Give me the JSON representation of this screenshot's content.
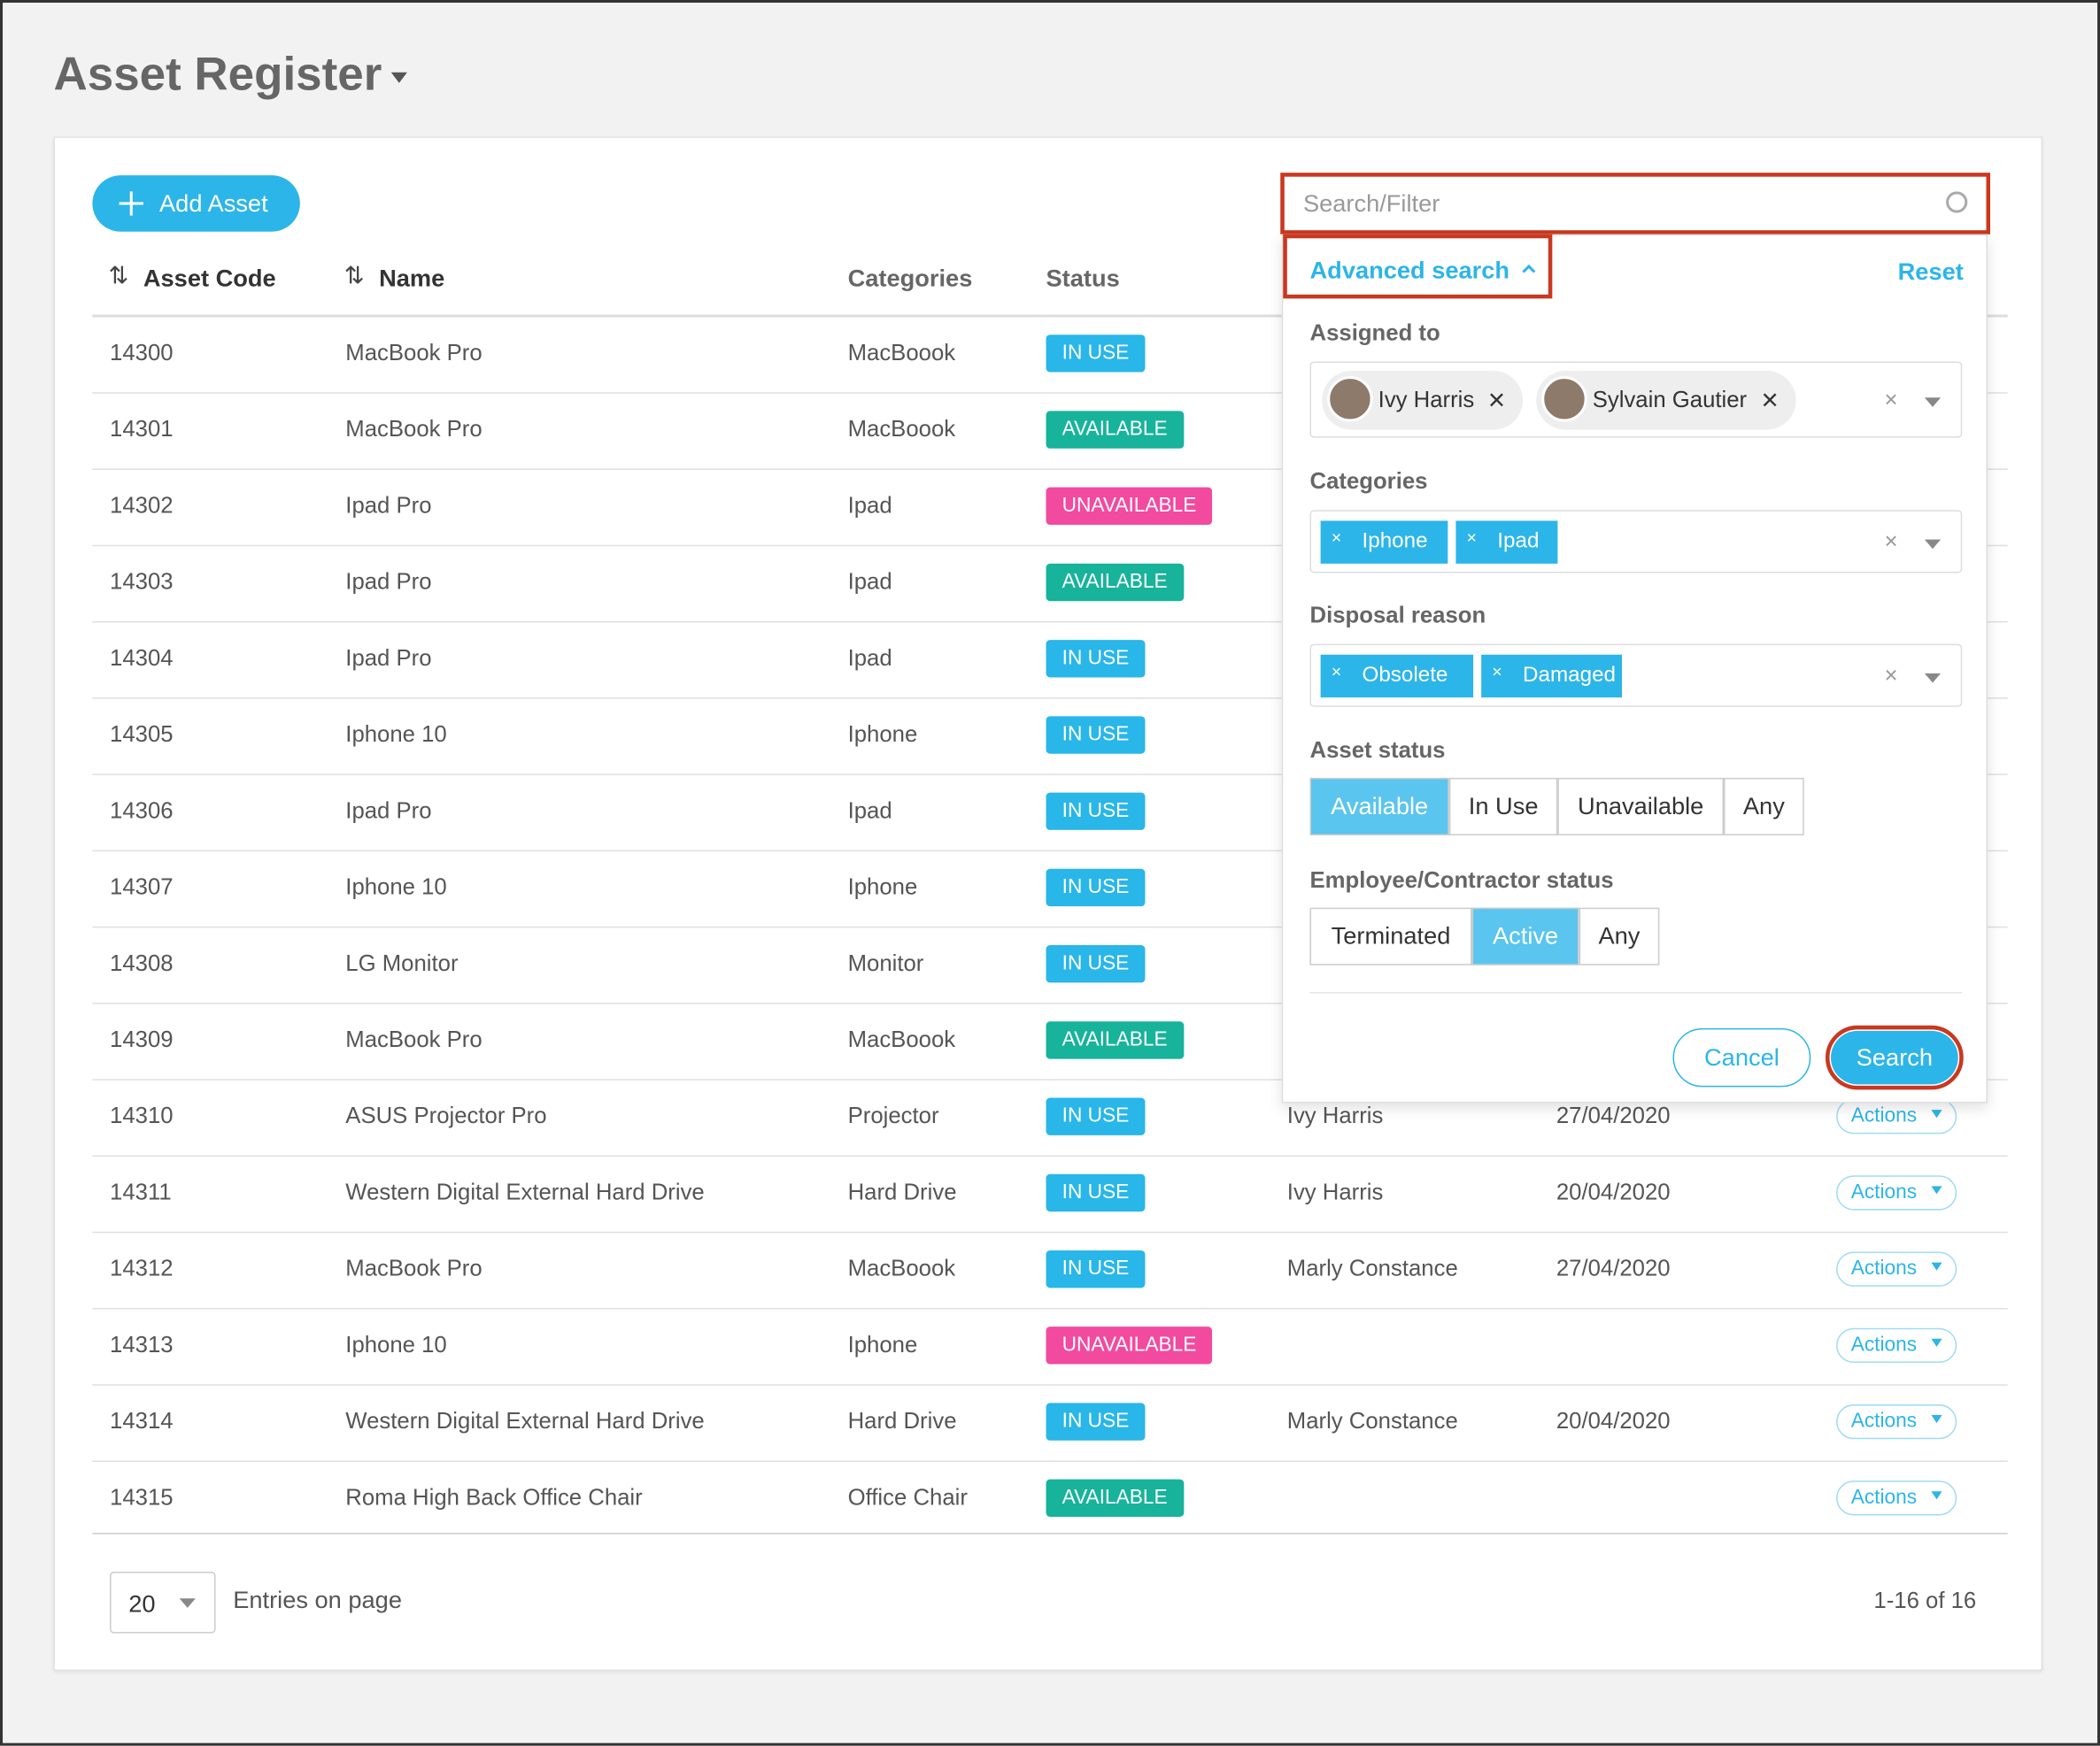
{
  "header": {
    "title": "Asset Register"
  },
  "toolbar": {
    "add_button": "Add Asset",
    "search_placeholder": "Search/Filter"
  },
  "table": {
    "columns": [
      "Asset Code",
      "Name",
      "Categories",
      "Status"
    ],
    "rows": [
      {
        "code": "14300",
        "name": "MacBook Pro",
        "category": "MacBoook",
        "status": {
          "label": "IN USE",
          "color": "#29b6e9"
        }
      },
      {
        "code": "14301",
        "name": "MacBook Pro",
        "category": "MacBoook",
        "status": {
          "label": "AVAILABLE",
          "color": "#17b39b"
        }
      },
      {
        "code": "14302",
        "name": "Ipad Pro",
        "category": "Ipad",
        "status": {
          "label": "UNAVAILABLE",
          "color": "#f24a9f"
        }
      },
      {
        "code": "14303",
        "name": "Ipad Pro",
        "category": "Ipad",
        "status": {
          "label": "AVAILABLE",
          "color": "#17b39b"
        }
      },
      {
        "code": "14304",
        "name": "Ipad Pro",
        "category": "Ipad",
        "status": {
          "label": "IN USE",
          "color": "#29b6e9"
        }
      },
      {
        "code": "14305",
        "name": "Iphone 10",
        "category": "Iphone",
        "status": {
          "label": "IN USE",
          "color": "#29b6e9"
        }
      },
      {
        "code": "14306",
        "name": "Ipad Pro",
        "category": "Ipad",
        "status": {
          "label": "IN USE",
          "color": "#29b6e9"
        }
      },
      {
        "code": "14307",
        "name": "Iphone 10",
        "category": "Iphone",
        "status": {
          "label": "IN USE",
          "color": "#29b6e9"
        }
      },
      {
        "code": "14308",
        "name": "LG Monitor",
        "category": "Monitor",
        "status": {
          "label": "IN USE",
          "color": "#29b6e9"
        }
      },
      {
        "code": "14309",
        "name": "MacBook Pro",
        "category": "MacBoook",
        "status": {
          "label": "AVAILABLE",
          "color": "#17b39b"
        }
      },
      {
        "code": "14310",
        "name": "ASUS Projector Pro",
        "category": "Projector",
        "status": {
          "label": "IN USE",
          "color": "#29b6e9"
        },
        "assigned": "Ivy Harris",
        "date": "27/04/2020",
        "action": "Actions"
      },
      {
        "code": "14311",
        "name": "Western Digital External Hard Drive",
        "category": "Hard Drive",
        "status": {
          "label": "IN USE",
          "color": "#29b6e9"
        },
        "assigned": "Ivy Harris",
        "date": "20/04/2020",
        "action": "Actions"
      },
      {
        "code": "14312",
        "name": "MacBook Pro",
        "category": "MacBoook",
        "status": {
          "label": "IN USE",
          "color": "#29b6e9"
        },
        "assigned": "Marly Constance",
        "date": "27/04/2020",
        "action": "Actions"
      },
      {
        "code": "14313",
        "name": "Iphone 10",
        "category": "Iphone",
        "status": {
          "label": "UNAVAILABLE",
          "color": "#f24a9f"
        },
        "action": "Actions"
      },
      {
        "code": "14314",
        "name": "Western Digital External Hard Drive",
        "category": "Hard Drive",
        "status": {
          "label": "IN USE",
          "color": "#29b6e9"
        },
        "assigned": "Marly Constance",
        "date": "20/04/2020",
        "action": "Actions"
      },
      {
        "code": "14315",
        "name": "Roma High Back Office Chair",
        "category": "Office Chair",
        "status": {
          "label": "AVAILABLE",
          "color": "#17b39b"
        },
        "action": "Actions"
      }
    ]
  },
  "advanced_search": {
    "label": "Advanced search",
    "reset": "Reset",
    "assigned_label": "Assigned to",
    "assigned": [
      "Ivy Harris",
      "Sylvain Gautier"
    ],
    "categories_label": "Categories",
    "categories": [
      "Iphone",
      "Ipad"
    ],
    "disposal_label": "Disposal reason",
    "disposal": [
      "Obsolete",
      "Damaged"
    ],
    "asset_status_label": "Asset status",
    "asset_status_options": [
      "Available",
      "In Use",
      "Unavailable",
      "Any"
    ],
    "asset_status_selected": 0,
    "employee_status_label": "Employee/Contractor status",
    "employee_status_options": [
      "Terminated",
      "Active",
      "Any"
    ],
    "employee_status_selected": 1,
    "cancel": "Cancel",
    "search": "Search"
  },
  "footer": {
    "per_page": "20",
    "per_page_label": "Entries on page",
    "range": "1-16 of 16"
  }
}
